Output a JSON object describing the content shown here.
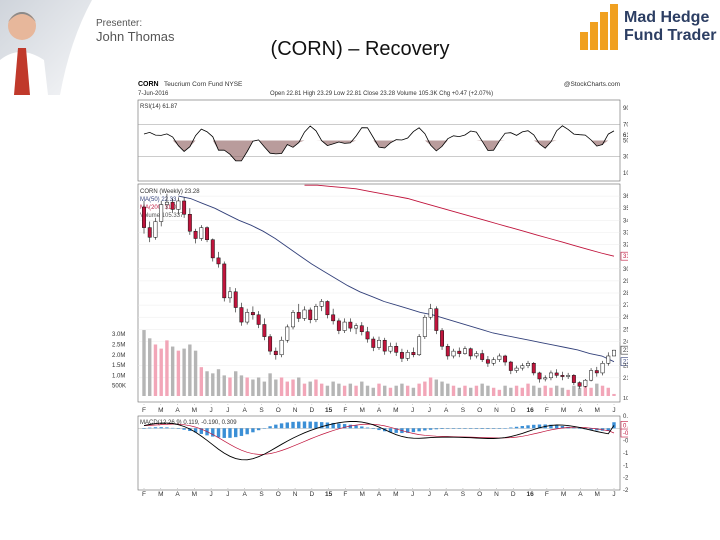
{
  "presenter": {
    "label": "Presenter:",
    "name": "John Thomas"
  },
  "slide": {
    "title": "(CORN) – Recovery"
  },
  "logo": {
    "line1": "Mad Hedge",
    "line2": "Fund Trader",
    "brand_color": "#2c3e63",
    "accent": "#f0a020"
  },
  "chart_data": {
    "type": "candlestick",
    "header": {
      "symbol": "CORN",
      "name": "Teucrium Corn Fund NYSE",
      "source": "@StockCharts.com",
      "date": "7-Jun-2016",
      "quote": "Open 22.81  High 23.29  Low 22.81  Close 23.28  Volume 105.3K  Chg +0.47 (+2.07%)"
    },
    "rsi_panel": {
      "label": "RSI(14) 61.87",
      "value": 61.87,
      "ylim": [
        0,
        100
      ],
      "ticks": [
        "90",
        "70",
        "50",
        "30",
        "10"
      ],
      "tick_values": [
        90,
        70,
        50,
        30,
        10
      ],
      "last_label": "61.87"
    },
    "price_panel": {
      "legend": [
        "CORN (Weekly) 23.28",
        "MA(50) 22.33",
        "MA(200) 31.04",
        "Volume 105.337"
      ],
      "ylim": [
        19,
        37
      ],
      "ticks": [
        "36",
        "35",
        "34",
        "33",
        "32",
        "31.04",
        "30",
        "29",
        "28",
        "27",
        "26",
        "25",
        "24",
        "23.28",
        "22.33",
        "22",
        "21"
      ],
      "tick_values": [
        36,
        35,
        34,
        33,
        32,
        31.04,
        30,
        29,
        28,
        27,
        26,
        25,
        24,
        23.28,
        22.33,
        22,
        21
      ],
      "volume_ticks": [
        "3.0M",
        "2.5M",
        "2.0M",
        "1.5M",
        "1.0M",
        "500K"
      ],
      "volume_tick_values": [
        3.0,
        2.5,
        2.0,
        1.5,
        1.0,
        0.5
      ],
      "volume_last_label": "105337",
      "ma50_last": 22.33,
      "ma200_last": 31.04,
      "close_last": 23.28,
      "ohlc": [
        [
          35.1,
          35.6,
          32.9,
          33.4
        ],
        [
          33.4,
          33.9,
          32.2,
          32.6
        ],
        [
          32.6,
          34.2,
          32.4,
          33.9
        ],
        [
          33.9,
          35.6,
          33.5,
          35.3
        ],
        [
          35.3,
          36.2,
          34.9,
          35.5
        ],
        [
          35.5,
          35.8,
          34.6,
          34.9
        ],
        [
          34.9,
          35.9,
          34.5,
          35.6
        ],
        [
          35.6,
          35.9,
          34.2,
          34.5
        ],
        [
          34.5,
          35.0,
          32.8,
          33.1
        ],
        [
          33.1,
          33.3,
          32.1,
          32.5
        ],
        [
          32.5,
          33.6,
          32.3,
          33.4
        ],
        [
          33.4,
          33.5,
          32.2,
          32.4
        ],
        [
          32.4,
          32.5,
          30.6,
          30.9
        ],
        [
          30.9,
          31.4,
          30.1,
          30.4
        ],
        [
          30.4,
          30.6,
          27.3,
          27.6
        ],
        [
          27.6,
          28.5,
          27.2,
          28.1
        ],
        [
          28.1,
          28.4,
          26.4,
          26.8
        ],
        [
          26.8,
          27.2,
          25.3,
          25.6
        ],
        [
          25.6,
          26.7,
          25.4,
          26.4
        ],
        [
          26.4,
          26.9,
          25.8,
          26.2
        ],
        [
          26.2,
          26.5,
          25.1,
          25.4
        ],
        [
          25.4,
          25.9,
          24.1,
          24.4
        ],
        [
          24.4,
          24.6,
          22.9,
          23.2
        ],
        [
          23.2,
          23.5,
          22.5,
          22.9
        ],
        [
          22.9,
          24.4,
          22.7,
          24.1
        ],
        [
          24.1,
          25.4,
          23.9,
          25.2
        ],
        [
          25.2,
          26.6,
          25.0,
          26.4
        ],
        [
          26.4,
          27.1,
          25.6,
          25.9
        ],
        [
          25.9,
          26.9,
          25.7,
          26.6
        ],
        [
          26.6,
          26.8,
          25.5,
          25.8
        ],
        [
          25.8,
          27.1,
          25.6,
          26.9
        ],
        [
          26.9,
          27.5,
          26.5,
          27.3
        ],
        [
          27.3,
          27.4,
          25.9,
          26.2
        ],
        [
          26.2,
          26.7,
          25.4,
          25.7
        ],
        [
          25.7,
          25.9,
          24.6,
          24.9
        ],
        [
          24.9,
          25.9,
          24.7,
          25.6
        ],
        [
          25.6,
          25.9,
          24.8,
          25.1
        ],
        [
          25.1,
          25.5,
          24.6,
          25.3
        ],
        [
          25.3,
          25.6,
          24.5,
          24.8
        ],
        [
          24.8,
          25.2,
          23.9,
          24.2
        ],
        [
          24.2,
          24.4,
          23.2,
          23.5
        ],
        [
          23.5,
          24.4,
          23.3,
          24.1
        ],
        [
          24.1,
          24.3,
          22.9,
          23.2
        ],
        [
          23.2,
          23.9,
          23.0,
          23.6
        ],
        [
          23.6,
          23.9,
          22.8,
          23.1
        ],
        [
          23.1,
          23.4,
          22.3,
          22.6
        ],
        [
          22.6,
          23.3,
          22.4,
          23.1
        ],
        [
          23.1,
          23.5,
          22.7,
          22.9
        ],
        [
          22.9,
          24.6,
          22.8,
          24.4
        ],
        [
          24.4,
          26.2,
          24.2,
          26.0
        ],
        [
          26.0,
          27.1,
          25.8,
          26.7
        ],
        [
          26.7,
          26.9,
          24.6,
          24.9
        ],
        [
          24.9,
          25.1,
          23.3,
          23.6
        ],
        [
          23.6,
          23.8,
          22.5,
          22.8
        ],
        [
          22.8,
          23.4,
          22.6,
          23.2
        ],
        [
          23.2,
          23.5,
          22.7,
          23.0
        ],
        [
          23.0,
          23.6,
          22.9,
          23.4
        ],
        [
          23.4,
          23.5,
          22.5,
          22.8
        ],
        [
          22.8,
          23.2,
          22.6,
          23.0
        ],
        [
          23.0,
          23.3,
          22.3,
          22.5
        ],
        [
          22.5,
          22.8,
          21.9,
          22.2
        ],
        [
          22.2,
          22.7,
          22.0,
          22.5
        ],
        [
          22.5,
          23.0,
          22.3,
          22.8
        ],
        [
          22.8,
          22.9,
          22.0,
          22.3
        ],
        [
          22.3,
          22.4,
          21.3,
          21.6
        ],
        [
          21.6,
          22.0,
          21.4,
          21.8
        ],
        [
          21.8,
          22.2,
          21.6,
          22.0
        ],
        [
          22.0,
          22.4,
          21.8,
          22.2
        ],
        [
          22.2,
          22.3,
          21.2,
          21.4
        ],
        [
          21.4,
          21.5,
          20.6,
          20.9
        ],
        [
          20.9,
          21.2,
          20.7,
          21.0
        ],
        [
          21.0,
          21.6,
          20.8,
          21.4
        ],
        [
          21.4,
          21.7,
          21.0,
          21.2
        ],
        [
          21.2,
          21.5,
          20.8,
          21.1
        ],
        [
          21.1,
          21.4,
          20.9,
          21.2
        ],
        [
          21.2,
          21.3,
          20.4,
          20.6
        ],
        [
          20.6,
          20.7,
          20.1,
          20.3
        ],
        [
          20.3,
          20.9,
          20.2,
          20.8
        ],
        [
          20.8,
          21.8,
          20.7,
          21.6
        ],
        [
          21.6,
          21.9,
          21.1,
          21.4
        ],
        [
          21.4,
          22.4,
          21.2,
          22.2
        ],
        [
          22.2,
          23.1,
          22.0,
          22.8
        ],
        [
          22.8,
          23.3,
          22.8,
          23.28
        ]
      ],
      "ma50": [
        36.0,
        35.8,
        35.4,
        35.0,
        34.5,
        34.0,
        33.6,
        33.1,
        32.5,
        31.8,
        31.1,
        30.4,
        29.8,
        29.2,
        28.6,
        28.1,
        27.7,
        27.3,
        27.0,
        26.7,
        26.4,
        26.2,
        25.9,
        25.6,
        25.3,
        25.0,
        24.7,
        24.5,
        24.3,
        24.1,
        23.9,
        23.7,
        23.5,
        23.3,
        23.0,
        22.8,
        22.33
      ],
      "ma200": [
        36.9,
        36.9,
        36.8,
        36.7,
        36.6,
        36.4,
        36.2,
        36.0,
        35.8,
        35.5,
        35.2,
        34.9,
        34.6,
        34.3,
        34.0,
        33.7,
        33.4,
        33.1,
        32.8,
        32.5,
        32.2,
        31.9,
        31.6,
        31.3,
        31.04
      ],
      "volume": [
        3.2,
        2.8,
        2.5,
        2.3,
        2.7,
        2.4,
        2.2,
        2.3,
        2.5,
        2.2,
        1.4,
        1.2,
        1.1,
        1.3,
        1.0,
        0.9,
        1.2,
        1.0,
        0.9,
        0.8,
        0.9,
        0.7,
        1.1,
        0.8,
        0.9,
        0.7,
        0.8,
        0.9,
        0.6,
        0.7,
        0.8,
        0.6,
        0.5,
        0.7,
        0.6,
        0.5,
        0.6,
        0.5,
        0.7,
        0.5,
        0.4,
        0.6,
        0.5,
        0.4,
        0.5,
        0.6,
        0.5,
        0.4,
        0.6,
        0.7,
        0.9,
        0.8,
        0.7,
        0.6,
        0.5,
        0.4,
        0.5,
        0.4,
        0.5,
        0.6,
        0.5,
        0.4,
        0.3,
        0.5,
        0.4,
        0.5,
        0.4,
        0.6,
        0.5,
        0.4,
        0.5,
        0.4,
        0.5,
        0.4,
        0.3,
        0.5,
        0.4,
        0.5,
        0.4,
        0.6,
        0.5,
        0.4,
        0.1
      ]
    },
    "macd_panel": {
      "label": "MACD(12,26,9) 0.119, -0.190, 0.309",
      "macd": 0.119,
      "signal": -0.19,
      "histogram": 0.309,
      "ylim": [
        -2.5,
        0.5
      ],
      "ticks": [
        "0.5",
        "0.119",
        "-0.190",
        "-0.5",
        "-1.0",
        "-1.5",
        "-2.0",
        "-2.5"
      ],
      "tick_values": [
        0.5,
        0.119,
        -0.19,
        -0.5,
        -1.0,
        -1.5,
        -2.0,
        -2.5
      ]
    },
    "x_labels": [
      "F",
      "M",
      "A",
      "M",
      "J",
      "J",
      "A",
      "S",
      "O",
      "N",
      "D",
      "15",
      "F",
      "M",
      "A",
      "M",
      "J",
      "J",
      "A",
      "S",
      "O",
      "N",
      "D",
      "16",
      "F",
      "M",
      "A",
      "M",
      "J"
    ],
    "colors": {
      "up": "#ffffff",
      "down": "#c0143c",
      "ma50": "#33417a",
      "ma200": "#c0143c",
      "rsi": "#000000",
      "macd_hist": "#3b8fd6",
      "volume_up": "#f2a6b8",
      "volume_down": "#b5b5b5"
    }
  }
}
